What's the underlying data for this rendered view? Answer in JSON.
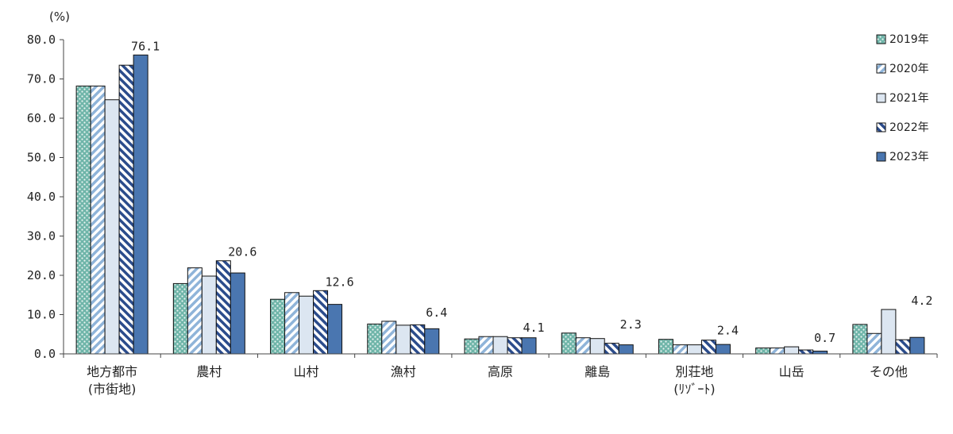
{
  "chart_data": {
    "type": "bar",
    "unit_label": "(%)",
    "ylim": [
      0,
      80
    ],
    "yticks": [
      "0.0",
      "10.0",
      "20.0",
      "30.0",
      "40.0",
      "50.0",
      "60.0",
      "70.0",
      "80.0"
    ],
    "legend_position": "right",
    "grid": false,
    "categories": [
      [
        "地方都市",
        "(市街地)"
      ],
      [
        "農村"
      ],
      [
        "山村"
      ],
      [
        "漁村"
      ],
      [
        "高原"
      ],
      [
        "離島"
      ],
      [
        "別荘地",
        "(ﾘｿﾞｰﾄ)"
      ],
      [
        "山岳"
      ],
      [
        "その他"
      ]
    ],
    "series": [
      {
        "name": "2019年",
        "values": [
          68.2,
          17.9,
          13.9,
          7.6,
          3.8,
          5.3,
          3.7,
          1.5,
          7.5
        ],
        "color": "#6fb5a9",
        "pattern": "dots"
      },
      {
        "name": "2020年",
        "values": [
          68.2,
          21.9,
          15.6,
          8.3,
          4.4,
          4.1,
          2.3,
          1.5,
          5.2
        ],
        "color": "#8fb4d9",
        "pattern": "diag-light"
      },
      {
        "name": "2021年",
        "values": [
          64.7,
          19.8,
          14.7,
          7.3,
          4.4,
          3.9,
          2.3,
          1.8,
          11.3
        ],
        "color": "#dce6f1",
        "pattern": "plain"
      },
      {
        "name": "2022年",
        "values": [
          73.5,
          23.7,
          16.1,
          7.4,
          4.1,
          2.7,
          3.5,
          1.0,
          3.6
        ],
        "color": "#2b4c8c",
        "pattern": "diag-dark"
      },
      {
        "name": "2023年",
        "values": [
          76.1,
          20.6,
          12.6,
          6.4,
          4.1,
          2.3,
          2.4,
          0.7,
          4.2
        ],
        "color": "#4a76b0",
        "pattern": "solid"
      }
    ],
    "data_labels": [
      "76.1",
      "20.6",
      "12.6",
      "6.4",
      "4.1",
      "2.3",
      "2.4",
      "0.7",
      "4.2"
    ]
  }
}
